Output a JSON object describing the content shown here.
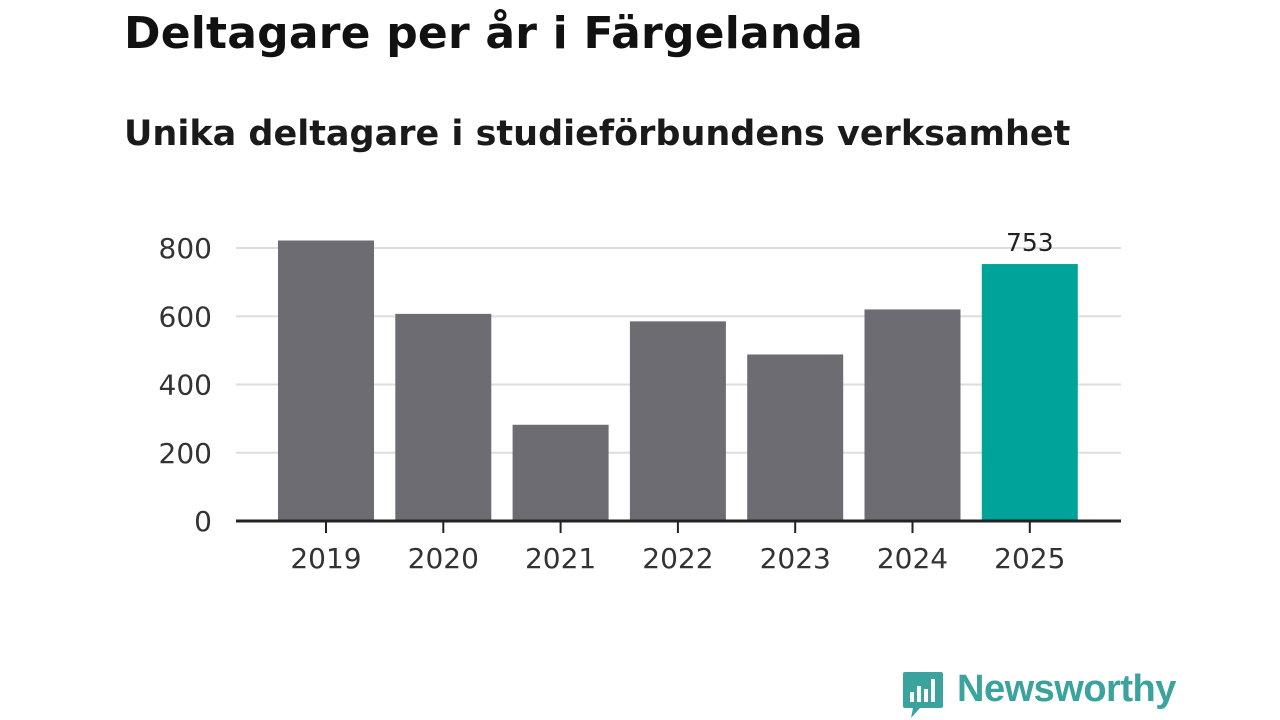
{
  "title": "Deltagare per år i Färgelanda",
  "subtitle": "Unika deltagare i studieförbundens verksamhet",
  "brand": {
    "name": "Newsworthy",
    "icon": "newsworthy-logo-icon",
    "color": "#3aa39d"
  },
  "chart_data": {
    "type": "bar",
    "categories": [
      "2019",
      "2020",
      "2021",
      "2022",
      "2023",
      "2024",
      "2025"
    ],
    "values": [
      822,
      607,
      282,
      585,
      488,
      620,
      753
    ],
    "highlight_index": 6,
    "data_labels": [
      {
        "index": 6,
        "text": "753"
      }
    ],
    "yticks": [
      0,
      200,
      400,
      600,
      800
    ],
    "ylim": [
      0,
      800
    ],
    "grid": true,
    "colors": {
      "bar": "#6d6c72",
      "highlight": "#00a398",
      "grid": "#dddddd",
      "axis": "#222222"
    }
  }
}
